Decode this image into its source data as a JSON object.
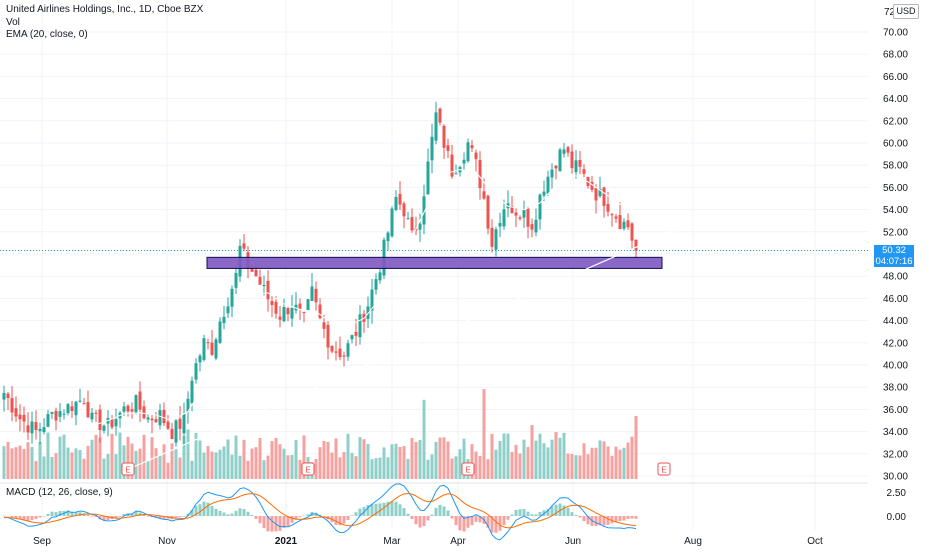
{
  "chart_data": {
    "type": "candlestick",
    "legend": {
      "symbol_line": "United Airlines Holdings, Inc., 1D, Cboe BZX",
      "volume_label": "Vol",
      "ema_label": "EMA (20, close, 0)"
    },
    "currency_badge": "USD",
    "top_axis_cutoff_label": "72",
    "price_axis": {
      "range": [
        29,
        72
      ],
      "ticks": [
        30,
        32,
        34,
        36,
        38,
        40,
        42,
        44,
        46,
        48,
        50,
        52,
        54,
        56,
        58,
        60,
        62,
        64,
        66,
        68,
        70
      ],
      "tick_labels": [
        "30.00",
        "32.00",
        "34.00",
        "36.00",
        "38.00",
        "40.00",
        "42.00",
        "44.00",
        "46.00",
        "48.00",
        "50.00",
        "52.00",
        "54.00",
        "56.00",
        "58.00",
        "60.00",
        "62.00",
        "64.00",
        "66.00",
        "68.00",
        "70.00"
      ]
    },
    "last_price": {
      "value": 50.32,
      "label": "50.32",
      "countdown": "04:07:16"
    },
    "x_axis_labels": [
      "Sep",
      "Nov",
      "2021",
      "Mar",
      "Apr",
      "Jun",
      "Aug",
      "Oct"
    ],
    "earnings_marker_label": "E",
    "earnings_markers_bars": [
      31,
      76,
      116,
      165
    ],
    "support_zone": {
      "low": 48.7,
      "high": 49.7
    },
    "trendline": {
      "from": {
        "bar": 31,
        "price": 30.6
      },
      "to": {
        "bar": 177,
        "price": 53.6
      }
    },
    "close_path": [
      [
        0,
        37.5
      ],
      [
        4,
        35.2
      ],
      [
        8,
        34.0
      ],
      [
        12,
        35.5
      ],
      [
        16,
        36.2
      ],
      [
        20,
        37.0
      ],
      [
        22,
        35.0
      ],
      [
        26,
        34.5
      ],
      [
        30,
        36.0
      ],
      [
        33,
        36.5
      ],
      [
        36,
        35.2
      ],
      [
        39,
        35.5
      ],
      [
        42,
        34.0
      ],
      [
        45,
        35.0
      ],
      [
        47,
        39.0
      ],
      [
        50,
        42.0
      ],
      [
        52,
        41.5
      ],
      [
        54,
        44.0
      ],
      [
        56,
        46.0
      ],
      [
        58,
        48.0
      ],
      [
        59,
        50.5
      ],
      [
        61,
        49.0
      ],
      [
        63,
        48.0
      ],
      [
        66,
        46.0
      ],
      [
        69,
        44.5
      ],
      [
        72,
        45.5
      ],
      [
        75,
        44.0
      ],
      [
        77,
        46.5
      ],
      [
        79,
        44.0
      ],
      [
        82,
        41.5
      ],
      [
        85,
        41.0
      ],
      [
        88,
        43.0
      ],
      [
        91,
        45.5
      ],
      [
        94,
        49.0
      ],
      [
        96,
        52.0
      ],
      [
        98,
        55.0
      ],
      [
        100,
        54.0
      ],
      [
        102,
        51.5
      ],
      [
        104,
        53.5
      ],
      [
        106,
        58.0
      ],
      [
        108,
        62.5
      ],
      [
        110,
        60.0
      ],
      [
        112,
        57.5
      ],
      [
        114,
        58.5
      ],
      [
        116,
        60.0
      ],
      [
        118,
        58.0
      ],
      [
        120,
        55.0
      ],
      [
        122,
        51.0
      ],
      [
        124,
        53.5
      ],
      [
        126,
        55.0
      ],
      [
        128,
        53.0
      ],
      [
        130,
        54.5
      ],
      [
        132,
        52.0
      ],
      [
        134,
        55.5
      ],
      [
        136,
        57.0
      ],
      [
        138,
        58.5
      ],
      [
        140,
        59.5
      ],
      [
        142,
        58.0
      ],
      [
        144,
        57.5
      ],
      [
        146,
        56.5
      ],
      [
        148,
        55.5
      ],
      [
        150,
        55.0
      ],
      [
        152,
        54.0
      ],
      [
        154,
        53.0
      ],
      [
        156,
        52.5
      ],
      [
        158,
        50.3
      ]
    ],
    "ema_points": [
      [
        22,
        34.5
      ],
      [
        26,
        35.0
      ],
      [
        30,
        35.6
      ],
      [
        34,
        35.7
      ],
      [
        38,
        35.5
      ],
      [
        42,
        35.0
      ],
      [
        46,
        35.8
      ],
      [
        50,
        38.2
      ],
      [
        54,
        41.0
      ],
      [
        58,
        44.0
      ],
      [
        62,
        46.3
      ],
      [
        66,
        46.5
      ],
      [
        70,
        45.5
      ],
      [
        74,
        45.0
      ],
      [
        78,
        44.8
      ],
      [
        82,
        43.8
      ],
      [
        86,
        43.5
      ],
      [
        90,
        44.2
      ],
      [
        94,
        46.0
      ],
      [
        98,
        49.5
      ],
      [
        102,
        51.5
      ],
      [
        106,
        54.5
      ],
      [
        110,
        57.2
      ],
      [
        114,
        57.6
      ],
      [
        118,
        57.4
      ],
      [
        122,
        55.5
      ],
      [
        126,
        54.3
      ],
      [
        130,
        54.0
      ],
      [
        134,
        54.6
      ],
      [
        138,
        56.2
      ],
      [
        142,
        57.2
      ],
      [
        146,
        56.5
      ],
      [
        150,
        55.5
      ],
      [
        154,
        54.5
      ],
      [
        158,
        53.4
      ]
    ],
    "volume_spikes": [
      [
        46,
        0.55
      ],
      [
        105,
        0.88
      ],
      [
        120,
        1.0
      ],
      [
        132,
        0.6
      ],
      [
        158,
        0.7
      ]
    ],
    "macd_legend": "MACD (12, 26, close, 9)",
    "macd_axis": {
      "ticks": [
        2.5,
        0.0
      ],
      "tick_labels": [
        "2.50",
        "0.00"
      ]
    },
    "colors": {
      "up": "#26a69a",
      "down": "#ef5350",
      "vol_up": "#8ecfc8",
      "vol_down": "#f4a19f",
      "ema": "#ffffff",
      "trendline": "#ffffff",
      "support_fill": "#7e57c2",
      "support_border": "#0d0d55",
      "macd_line": "#2196f3",
      "signal_line": "#ff6d00",
      "last_price": "#2196f3",
      "earnings": "#ef5350"
    }
  }
}
